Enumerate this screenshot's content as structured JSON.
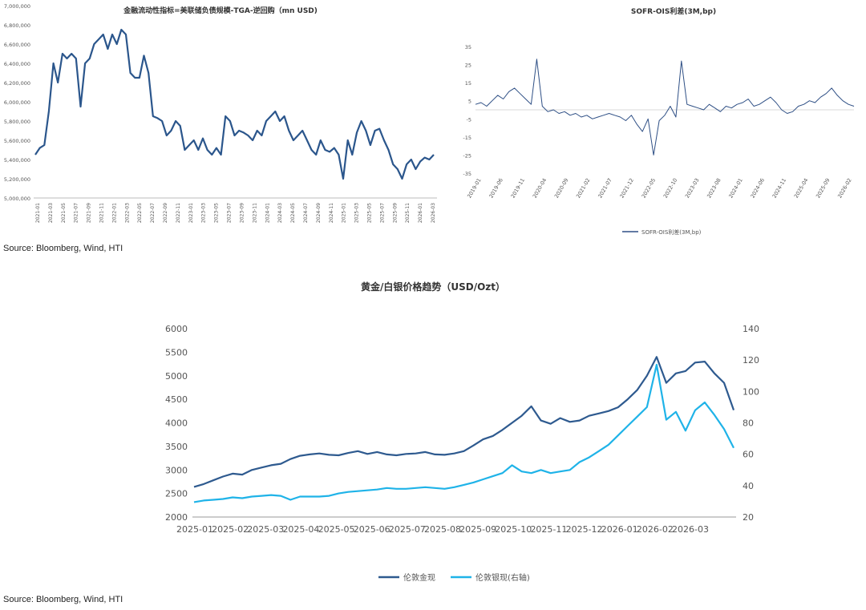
{
  "colors": {
    "gold": "#2E5A8F",
    "silver": "#1FB3E8",
    "liquidity": "#2B568C",
    "sofr": "#2E4F85",
    "axis": "#bbbbbb",
    "text": "#555555"
  },
  "sources": {
    "top": "Source: Bloomberg, Wind, HTI",
    "bottom": "Source: Bloomberg, Wind, HTI"
  },
  "chart_data": [
    {
      "type": "line",
      "title": "金融流动性指标=美联储负债规模-TGA-逆回购（mn USD)",
      "ylim": [
        5000000,
        7000000
      ],
      "yticks": [
        "5,000,000",
        "5,200,000",
        "5,400,000",
        "5,600,000",
        "5,800,000",
        "6,000,000",
        "6,200,000",
        "6,400,000",
        "6,600,000",
        "6,800,000",
        "7,000,000"
      ],
      "xticks": [
        "2021-01",
        "2021-03",
        "2021-05",
        "2021-07",
        "2021-09",
        "2021-11",
        "2022-01",
        "2022-03",
        "2022-05",
        "2022-07",
        "2022-09",
        "2022-11",
        "2023-01",
        "2023-03",
        "2023-05",
        "2023-07",
        "2023-09",
        "2023-11",
        "2024-01",
        "2024-03",
        "2024-05",
        "2024-07",
        "2024-09",
        "2024-11",
        "2025-01",
        "2025-03",
        "2025-05",
        "2025-07",
        "2025-09",
        "2025-11",
        "2026-01",
        "2026-03"
      ],
      "series": [
        {
          "values": [
            5450000,
            5520000,
            5550000,
            5900000,
            6400000,
            6200000,
            6500000,
            6450000,
            6500000,
            6450000,
            5950000,
            6400000,
            6450000,
            6600000,
            6650000,
            6700000,
            6550000,
            6700000,
            6600000,
            6750000,
            6700000,
            6300000,
            6250000,
            6250000,
            6480000,
            6300000,
            5850000,
            5830000,
            5800000,
            5650000,
            5700000,
            5800000,
            5750000,
            5500000,
            5550000,
            5600000,
            5500000,
            5620000,
            5500000,
            5450000,
            5520000,
            5450000,
            5850000,
            5800000,
            5650000,
            5700000,
            5680000,
            5650000,
            5600000,
            5700000,
            5650000,
            5800000,
            5850000,
            5900000,
            5800000,
            5850000,
            5700000,
            5600000,
            5650000,
            5700000,
            5600000,
            5500000,
            5450000,
            5600000,
            5500000,
            5480000,
            5520000,
            5450000,
            5200000,
            5600000,
            5450000,
            5680000,
            5800000,
            5700000,
            5550000,
            5700000,
            5720000,
            5600000,
            5500000,
            5350000,
            5300000,
            5200000,
            5350000,
            5400000,
            5300000,
            5380000,
            5420000,
            5400000,
            5450000
          ]
        }
      ]
    },
    {
      "type": "line",
      "title": "SOFR-OIS利差(3M,bp)",
      "ylim": [
        -35,
        35
      ],
      "yticks": [
        "-35",
        "-25",
        "-15",
        "-5",
        "5",
        "15",
        "25",
        "35"
      ],
      "xticks": [
        "2019-01",
        "2019-06",
        "2019-11",
        "2020-04",
        "2020-09",
        "2021-02",
        "2021-07",
        "2021-12",
        "2022-05",
        "2022-10",
        "2023-03",
        "2023-08",
        "2024-01",
        "2024-06",
        "2024-11",
        "2025-04",
        "2025-09",
        "2026-02"
      ],
      "series": [
        {
          "name": "SOFR-OIS利差(3M,bp)",
          "values": [
            3,
            4,
            2,
            5,
            8,
            6,
            10,
            12,
            9,
            6,
            3,
            28,
            2,
            -1,
            0,
            -2,
            -1,
            -3,
            -2,
            -4,
            -3,
            -5,
            -4,
            -3,
            -2,
            -3,
            -4,
            -6,
            -3,
            -8,
            -12,
            -5,
            -25,
            -6,
            -3,
            2,
            -4,
            27,
            3,
            2,
            1,
            0,
            3,
            1,
            -1,
            2,
            1,
            3,
            4,
            6,
            2,
            3,
            5,
            7,
            4,
            0,
            -2,
            -1,
            2,
            3,
            5,
            4,
            7,
            9,
            12,
            8,
            5,
            3,
            2
          ]
        }
      ]
    },
    {
      "type": "line",
      "title": "黄金/白银价格趋势（USD/Ozt）",
      "ylim": [
        2000,
        6000
      ],
      "y2lim": [
        20,
        140
      ],
      "yticks": [
        "2000",
        "2500",
        "3000",
        "3500",
        "4000",
        "4500",
        "5000",
        "5500",
        "6000"
      ],
      "y2ticks": [
        "20",
        "40",
        "60",
        "80",
        "100",
        "120",
        "140"
      ],
      "xticks": [
        "2025-01",
        "2025-02",
        "2025-03",
        "2025-04",
        "2025-05",
        "2025-06",
        "2025-07",
        "2025-08",
        "2025-09",
        "2025-10",
        "2025-11",
        "2025-12",
        "2026-01",
        "2026-02",
        "2026-03"
      ],
      "series": [
        {
          "name": "伦敦金现",
          "axis": "left",
          "values": [
            2640,
            2700,
            2780,
            2860,
            2920,
            2900,
            3000,
            3050,
            3100,
            3130,
            3230,
            3300,
            3330,
            3350,
            3320,
            3310,
            3360,
            3400,
            3340,
            3380,
            3330,
            3310,
            3340,
            3350,
            3380,
            3330,
            3320,
            3350,
            3400,
            3520,
            3650,
            3720,
            3850,
            4000,
            4150,
            4350,
            4050,
            3980,
            4100,
            4020,
            4050,
            4150,
            4200,
            4250,
            4330,
            4500,
            4700,
            5000,
            5400,
            4850,
            5050,
            5100,
            5280,
            5300,
            5050,
            4850,
            4270
          ]
        },
        {
          "name": "伦敦银现(右轴)",
          "axis": "right",
          "values": [
            29.5,
            30.5,
            31,
            31.5,
            32.5,
            32,
            33,
            33.5,
            34,
            33.5,
            31,
            33,
            33,
            33,
            33.5,
            35,
            36,
            36.5,
            37,
            37.5,
            38.5,
            38,
            38,
            38.5,
            39,
            38.5,
            38,
            39,
            40.5,
            42,
            44,
            46,
            48,
            53,
            49,
            48,
            50,
            48,
            49,
            50,
            55,
            58,
            62,
            66,
            72,
            78,
            84,
            90,
            117,
            82,
            87,
            75,
            88,
            93,
            85,
            76,
            64
          ]
        }
      ]
    }
  ]
}
